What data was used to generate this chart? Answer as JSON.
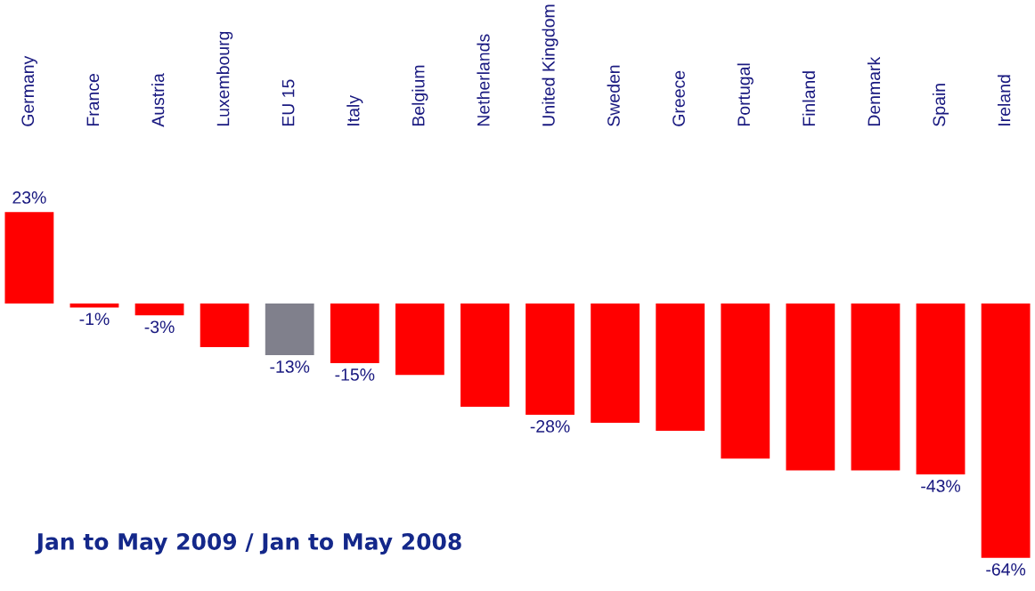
{
  "chart_data": {
    "type": "bar",
    "title": "Jan to May 2009 / Jan to May 2008",
    "categories": [
      "Germany",
      "France",
      "Austria",
      "Luxembourg",
      "EU 15",
      "Italy",
      "Belgium",
      "Netherlands",
      "United Kingdom",
      "Sweden",
      "Greece",
      "Portugal",
      "Finland",
      "Denmark",
      "Spain",
      "Ireland"
    ],
    "values": [
      23,
      -1,
      -3,
      -11,
      -13,
      -15,
      -18,
      -26,
      -28,
      -30,
      -32,
      -39,
      -42,
      -42,
      -43,
      -64
    ],
    "value_labels": [
      "23%",
      "-1%",
      "-3%",
      null,
      "-13%",
      "-15%",
      null,
      null,
      "-28%",
      null,
      null,
      null,
      null,
      null,
      "-43%",
      "-64%"
    ],
    "colors": [
      "#ff0000",
      "#ff0000",
      "#ff0000",
      "#ff0000",
      "#80808c",
      "#ff0000",
      "#ff0000",
      "#ff0000",
      "#ff0000",
      "#ff0000",
      "#ff0000",
      "#ff0000",
      "#ff0000",
      "#ff0000",
      "#ff0000",
      "#ff0000"
    ],
    "grid": false,
    "legend": false
  }
}
